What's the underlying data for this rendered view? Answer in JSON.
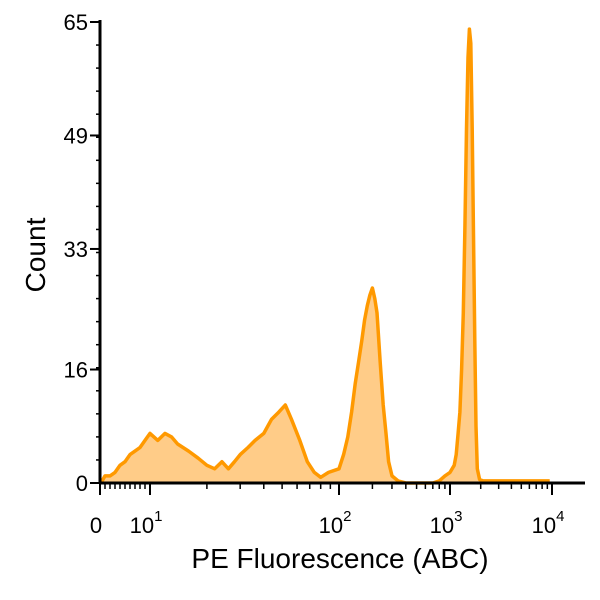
{
  "chart_data": {
    "type": "area",
    "xlabel": "PE Fluorescence (ABC)",
    "ylabel": "Count",
    "x_scale": "log",
    "xlim": [
      0,
      10000
    ],
    "ylim": [
      0,
      65
    ],
    "y_ticks": [
      {
        "value": 0,
        "label": "0"
      },
      {
        "value": 16,
        "label": "16"
      },
      {
        "value": 33,
        "label": "33"
      },
      {
        "value": 49,
        "label": "49"
      },
      {
        "value": 65,
        "label": "65"
      }
    ],
    "x_ticks": [
      {
        "value": 0,
        "label": "0",
        "exp": ""
      },
      {
        "value": 10,
        "label": "10",
        "exp": "1"
      },
      {
        "value": 100,
        "label": "10",
        "exp": "2"
      },
      {
        "value": 1000,
        "label": "10",
        "exp": "3"
      },
      {
        "value": 10000,
        "label": "10",
        "exp": "4"
      }
    ],
    "series": [
      {
        "color": "#ff9900",
        "fill": "#ffcc88",
        "points": [
          [
            0.2,
            0
          ],
          [
            1.0,
            1
          ],
          [
            2,
            1
          ],
          [
            3,
            1.5
          ],
          [
            4,
            2.5
          ],
          [
            5,
            3
          ],
          [
            6,
            4
          ],
          [
            7,
            4.5
          ],
          [
            8,
            5
          ],
          [
            9,
            6
          ],
          [
            10,
            7
          ],
          [
            11,
            6
          ],
          [
            12,
            7
          ],
          [
            13,
            6.5
          ],
          [
            14,
            5.5
          ],
          [
            16,
            4.5
          ],
          [
            18,
            3.5
          ],
          [
            20,
            2.5
          ],
          [
            22,
            2
          ],
          [
            24,
            3
          ],
          [
            26,
            2
          ],
          [
            28,
            3
          ],
          [
            30,
            4
          ],
          [
            33,
            5
          ],
          [
            36,
            6
          ],
          [
            40,
            7
          ],
          [
            44,
            9
          ],
          [
            48,
            10
          ],
          [
            52,
            11
          ],
          [
            56,
            9
          ],
          [
            62,
            6
          ],
          [
            68,
            3
          ],
          [
            74,
            1.5
          ],
          [
            80,
            0.8
          ],
          [
            88,
            1.5
          ],
          [
            100,
            2
          ],
          [
            110,
            4
          ],
          [
            120,
            6.5
          ],
          [
            130,
            10
          ],
          [
            140,
            14
          ],
          [
            150,
            17
          ],
          [
            160,
            20
          ],
          [
            170,
            23
          ],
          [
            180,
            25
          ],
          [
            190,
            26.5
          ],
          [
            200,
            27.5
          ],
          [
            210,
            26
          ],
          [
            220,
            24
          ],
          [
            235,
            17
          ],
          [
            250,
            11
          ],
          [
            265,
            7
          ],
          [
            280,
            3
          ],
          [
            300,
            1
          ],
          [
            340,
            0.3
          ],
          [
            400,
            0
          ],
          [
            700,
            0
          ],
          [
            800,
            0.3
          ],
          [
            900,
            1
          ],
          [
            1000,
            1.5
          ],
          [
            1100,
            2.5
          ],
          [
            1150,
            4
          ],
          [
            1200,
            7
          ],
          [
            1250,
            10
          ],
          [
            1300,
            16
          ],
          [
            1350,
            24
          ],
          [
            1400,
            36
          ],
          [
            1450,
            50
          ],
          [
            1500,
            60
          ],
          [
            1550,
            64
          ],
          [
            1600,
            62
          ],
          [
            1650,
            50
          ],
          [
            1700,
            35
          ],
          [
            1750,
            20
          ],
          [
            1800,
            8
          ],
          [
            1850,
            2
          ],
          [
            1950,
            0.5
          ],
          [
            2100,
            0.3
          ],
          [
            3000,
            0.3
          ],
          [
            5000,
            0.3
          ],
          [
            8000,
            0.3
          ],
          [
            9500,
            0.3
          ]
        ]
      }
    ]
  }
}
